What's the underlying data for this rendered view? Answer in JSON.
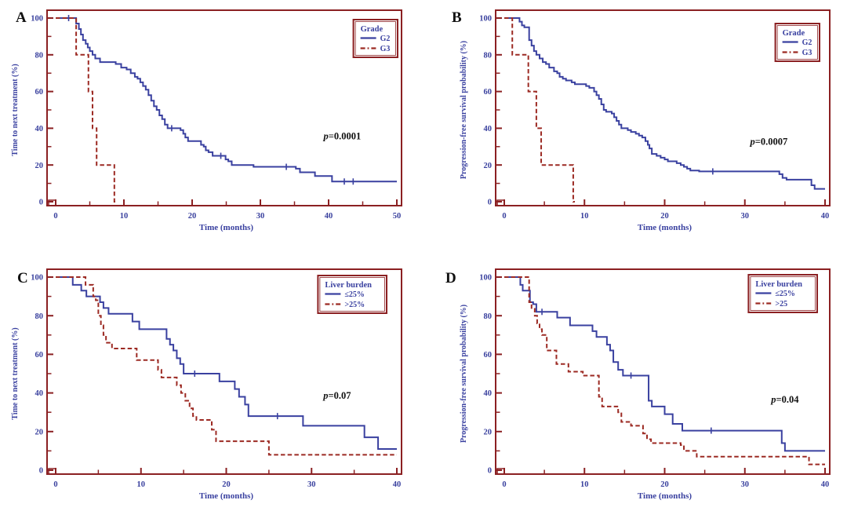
{
  "page": {
    "background": "#ffffff"
  },
  "colors": {
    "curve_blue": "#3a41a0",
    "curve_red": "#9c2a23",
    "axis_red": "#8b2022",
    "tick_label_blue": "#39409e",
    "axis_title_blue": "#3a41a0",
    "panel_letter_black": "#111111"
  },
  "chart_data": [
    {
      "type": "line",
      "subtype": "kaplan_meier_step",
      "panel_letter": "A",
      "xlabel": "Time (months)",
      "ylabel": "Time to next treatment (%)",
      "xlim": [
        0,
        50
      ],
      "ylim": [
        0,
        100
      ],
      "x_major_ticks": [
        0,
        10,
        20,
        30,
        40,
        50
      ],
      "x_minor_ticks": [
        5,
        15,
        25,
        35,
        45
      ],
      "y_major_ticks": [
        0,
        20,
        40,
        60,
        80,
        100
      ],
      "y_minor_ticks": [
        10,
        30,
        50,
        70,
        90
      ],
      "grid": false,
      "legend": {
        "title": "Grade",
        "position": "top-right"
      },
      "annotation": {
        "text": "p=0.0001",
        "x": 42,
        "y": 34
      },
      "series": [
        {
          "name": "G2",
          "line": "solid",
          "color": "#3a41a0",
          "end_x": 50,
          "points": [
            [
              0,
              100
            ],
            [
              3,
              97
            ],
            [
              3.4,
              94
            ],
            [
              3.7,
              91
            ],
            [
              4,
              88
            ],
            [
              4.4,
              86
            ],
            [
              4.7,
              84
            ],
            [
              5,
              82
            ],
            [
              5.4,
              80
            ],
            [
              5.8,
              78
            ],
            [
              6.5,
              76
            ],
            [
              8.8,
              75
            ],
            [
              9.6,
              73
            ],
            [
              10.4,
              72
            ],
            [
              11,
              70
            ],
            [
              11.6,
              68
            ],
            [
              12,
              67
            ],
            [
              12.4,
              65
            ],
            [
              12.8,
              63
            ],
            [
              13.2,
              61
            ],
            [
              13.6,
              58
            ],
            [
              14,
              55
            ],
            [
              14.4,
              52
            ],
            [
              14.8,
              50
            ],
            [
              15.2,
              47
            ],
            [
              15.6,
              45
            ],
            [
              16,
              42
            ],
            [
              16.4,
              40
            ],
            [
              18.3,
              39
            ],
            [
              18.7,
              37
            ],
            [
              19,
              35
            ],
            [
              19.4,
              33
            ],
            [
              21.3,
              31
            ],
            [
              21.7,
              30
            ],
            [
              22,
              28
            ],
            [
              22.4,
              27
            ],
            [
              23,
              25
            ],
            [
              24.9,
              23
            ],
            [
              25.3,
              22
            ],
            [
              25.8,
              20
            ],
            [
              29,
              19
            ],
            [
              35.2,
              18
            ],
            [
              35.8,
              16
            ],
            [
              38,
              14
            ],
            [
              40.5,
              11
            ]
          ],
          "censor_marks": [
            [
              1.9,
              100
            ],
            [
              17,
              40
            ],
            [
              24.2,
              25
            ],
            [
              33.8,
              19
            ],
            [
              42.3,
              11
            ],
            [
              43.6,
              11
            ]
          ]
        },
        {
          "name": "G3",
          "line": "dashed",
          "color": "#9c2a23",
          "end_x": 8.8,
          "points": [
            [
              0,
              100
            ],
            [
              3,
              80
            ],
            [
              4.8,
              60
            ],
            [
              5.4,
              40
            ],
            [
              6,
              20
            ],
            [
              8.6,
              0
            ]
          ],
          "censor_marks": []
        }
      ]
    },
    {
      "type": "line",
      "subtype": "kaplan_meier_step",
      "panel_letter": "B",
      "xlabel": "Time (months)",
      "ylabel": "Progression-free survival probability (%)",
      "xlim": [
        0,
        40
      ],
      "ylim": [
        0,
        100
      ],
      "x_major_ticks": [
        0,
        10,
        20,
        30,
        40
      ],
      "x_minor_ticks": [
        5,
        15,
        25,
        35
      ],
      "y_major_ticks": [
        0,
        20,
        40,
        60,
        80,
        100
      ],
      "y_minor_ticks": [
        10,
        30,
        50,
        70,
        90
      ],
      "grid": false,
      "legend": {
        "title": "Grade",
        "position": "top-right"
      },
      "annotation": {
        "text": "p=0.0007",
        "x": 33,
        "y": 31
      },
      "series": [
        {
          "name": "G2",
          "line": "solid",
          "color": "#3a41a0",
          "end_x": 40,
          "points": [
            [
              0,
              100
            ],
            [
              1.9,
              98
            ],
            [
              2.2,
              96
            ],
            [
              2.5,
              95
            ],
            [
              3.1,
              88
            ],
            [
              3.4,
              85
            ],
            [
              3.7,
              82
            ],
            [
              4,
              80
            ],
            [
              4.4,
              78
            ],
            [
              4.8,
              76
            ],
            [
              5.2,
              75
            ],
            [
              5.6,
              73
            ],
            [
              6.2,
              71
            ],
            [
              6.6,
              70
            ],
            [
              6.9,
              68
            ],
            [
              7.3,
              67
            ],
            [
              7.7,
              66
            ],
            [
              8.4,
              65
            ],
            [
              8.8,
              64
            ],
            [
              10.2,
              63
            ],
            [
              10.6,
              62
            ],
            [
              11.2,
              60
            ],
            [
              11.5,
              58
            ],
            [
              11.8,
              56
            ],
            [
              12.1,
              53
            ],
            [
              12.4,
              50
            ],
            [
              12.7,
              49
            ],
            [
              13.4,
              48
            ],
            [
              13.7,
              46
            ],
            [
              14,
              44
            ],
            [
              14.3,
              42
            ],
            [
              14.6,
              40
            ],
            [
              15.4,
              39
            ],
            [
              15.8,
              38
            ],
            [
              16.4,
              37
            ],
            [
              16.8,
              36
            ],
            [
              17.2,
              35
            ],
            [
              17.6,
              33
            ],
            [
              17.9,
              31
            ],
            [
              18.1,
              29
            ],
            [
              18.4,
              26
            ],
            [
              19,
              25
            ],
            [
              19.5,
              24
            ],
            [
              20,
              23
            ],
            [
              20.4,
              22
            ],
            [
              21.5,
              21
            ],
            [
              22,
              20
            ],
            [
              22.4,
              19
            ],
            [
              22.8,
              18
            ],
            [
              23.2,
              17
            ],
            [
              24.3,
              16.5
            ],
            [
              34.3,
              15
            ],
            [
              34.7,
              13
            ],
            [
              35.2,
              12
            ],
            [
              38.3,
              9
            ],
            [
              38.7,
              7
            ]
          ],
          "censor_marks": [
            [
              26,
              16.5
            ]
          ]
        },
        {
          "name": "G3",
          "line": "dashed",
          "color": "#9c2a23",
          "end_x": 8.8,
          "points": [
            [
              0,
              100
            ],
            [
              1,
              80
            ],
            [
              3,
              60
            ],
            [
              4,
              40
            ],
            [
              4.6,
              20
            ],
            [
              8.6,
              0
            ]
          ],
          "censor_marks": []
        }
      ]
    },
    {
      "type": "line",
      "subtype": "kaplan_meier_step",
      "panel_letter": "C",
      "xlabel": "Time (months)",
      "ylabel": "Time to next treatment (%)",
      "xlim": [
        0,
        40
      ],
      "ylim": [
        0,
        100
      ],
      "x_major_ticks": [
        0,
        10,
        20,
        30,
        40
      ],
      "x_minor_ticks": [
        5,
        15,
        25,
        35
      ],
      "y_major_ticks": [
        0,
        20,
        40,
        60,
        80,
        100
      ],
      "y_minor_ticks": [
        10,
        30,
        50,
        70,
        90
      ],
      "grid": false,
      "legend": {
        "title": "Liver burden",
        "position": "top-right"
      },
      "annotation": {
        "text": "p=0.07",
        "x": 33,
        "y": 37
      },
      "series": [
        {
          "name": "≤25%",
          "line": "solid",
          "color": "#3a41a0",
          "end_x": 40,
          "points": [
            [
              0,
              100
            ],
            [
              2,
              96
            ],
            [
              3,
              93
            ],
            [
              3.6,
              90
            ],
            [
              5.2,
              87
            ],
            [
              5.6,
              84
            ],
            [
              6.2,
              81
            ],
            [
              9,
              77
            ],
            [
              9.8,
              73
            ],
            [
              13,
              68
            ],
            [
              13.4,
              65
            ],
            [
              13.8,
              62
            ],
            [
              14.2,
              58
            ],
            [
              14.6,
              55
            ],
            [
              15,
              50
            ],
            [
              19.2,
              46
            ],
            [
              21,
              42
            ],
            [
              21.5,
              38
            ],
            [
              22.2,
              34
            ],
            [
              22.6,
              28
            ],
            [
              29,
              23
            ],
            [
              36.2,
              17
            ],
            [
              37.8,
              11
            ]
          ],
          "censor_marks": [
            [
              16.3,
              50
            ],
            [
              26,
              28
            ]
          ]
        },
        {
          "name": ">25%",
          "line": "dashed",
          "color": "#9c2a23",
          "end_x": 40,
          "points": [
            [
              0,
              100
            ],
            [
              3.5,
              96
            ],
            [
              4.4,
              90
            ],
            [
              4.7,
              88
            ],
            [
              5,
              80
            ],
            [
              5.3,
              75
            ],
            [
              5.6,
              70
            ],
            [
              5.9,
              66
            ],
            [
              6.6,
              63
            ],
            [
              9.5,
              57
            ],
            [
              12,
              52
            ],
            [
              12.4,
              48
            ],
            [
              14.2,
              44
            ],
            [
              14.7,
              40
            ],
            [
              15.2,
              36
            ],
            [
              15.7,
              32
            ],
            [
              16.1,
              28
            ],
            [
              16.5,
              26
            ],
            [
              18.3,
              21
            ],
            [
              18.8,
              15
            ],
            [
              25,
              8
            ]
          ],
          "censor_marks": []
        }
      ]
    },
    {
      "type": "line",
      "subtype": "kaplan_meier_step",
      "panel_letter": "D",
      "xlabel": "Time (months)",
      "ylabel": "Progression-free survival probability (%)",
      "xlim": [
        0,
        40
      ],
      "ylim": [
        0,
        100
      ],
      "x_major_ticks": [
        0,
        10,
        20,
        30,
        40
      ],
      "x_minor_ticks": [
        5,
        15,
        25,
        35
      ],
      "y_major_ticks": [
        0,
        20,
        40,
        60,
        80,
        100
      ],
      "y_minor_ticks": [
        10,
        30,
        50,
        70,
        90
      ],
      "grid": false,
      "legend": {
        "title": "Liver burden",
        "position": "top-right"
      },
      "annotation": {
        "text": "p=0.04",
        "x": 35,
        "y": 35
      },
      "series": [
        {
          "name": "≤25%",
          "line": "solid",
          "color": "#3a41a0",
          "end_x": 40,
          "points": [
            [
              0,
              100
            ],
            [
              2,
              96
            ],
            [
              2.3,
              93
            ],
            [
              3.2,
              87
            ],
            [
              3.6,
              86
            ],
            [
              4,
              82
            ],
            [
              6.6,
              79
            ],
            [
              8.2,
              75
            ],
            [
              11,
              72
            ],
            [
              11.5,
              69
            ],
            [
              12.8,
              65
            ],
            [
              13.2,
              62
            ],
            [
              13.6,
              56
            ],
            [
              14.2,
              52
            ],
            [
              14.8,
              49
            ],
            [
              18,
              36
            ],
            [
              18.4,
              33
            ],
            [
              20,
              29
            ],
            [
              21,
              24
            ],
            [
              22.2,
              20.5
            ],
            [
              34.6,
              14
            ],
            [
              35,
              10
            ]
          ],
          "censor_marks": [
            [
              4.7,
              82
            ],
            [
              15.8,
              49
            ],
            [
              25.8,
              20.5
            ]
          ]
        },
        {
          "name": ">25",
          "line": "dashed",
          "color": "#9c2a23",
          "end_x": 40,
          "points": [
            [
              0,
              100
            ],
            [
              3.1,
              87
            ],
            [
              3.4,
              84
            ],
            [
              3.8,
              80
            ],
            [
              4.1,
              76
            ],
            [
              4.4,
              73
            ],
            [
              4.7,
              70
            ],
            [
              5.3,
              62
            ],
            [
              6.5,
              55
            ],
            [
              8,
              51
            ],
            [
              9.8,
              49
            ],
            [
              11.8,
              38
            ],
            [
              12.2,
              33
            ],
            [
              14.2,
              30
            ],
            [
              14.6,
              25
            ],
            [
              15.8,
              23
            ],
            [
              17.3,
              19
            ],
            [
              17.8,
              16
            ],
            [
              18.3,
              14
            ],
            [
              22,
              13
            ],
            [
              22.4,
              10
            ],
            [
              24,
              7
            ],
            [
              38,
              3
            ]
          ],
          "censor_marks": []
        }
      ]
    }
  ]
}
